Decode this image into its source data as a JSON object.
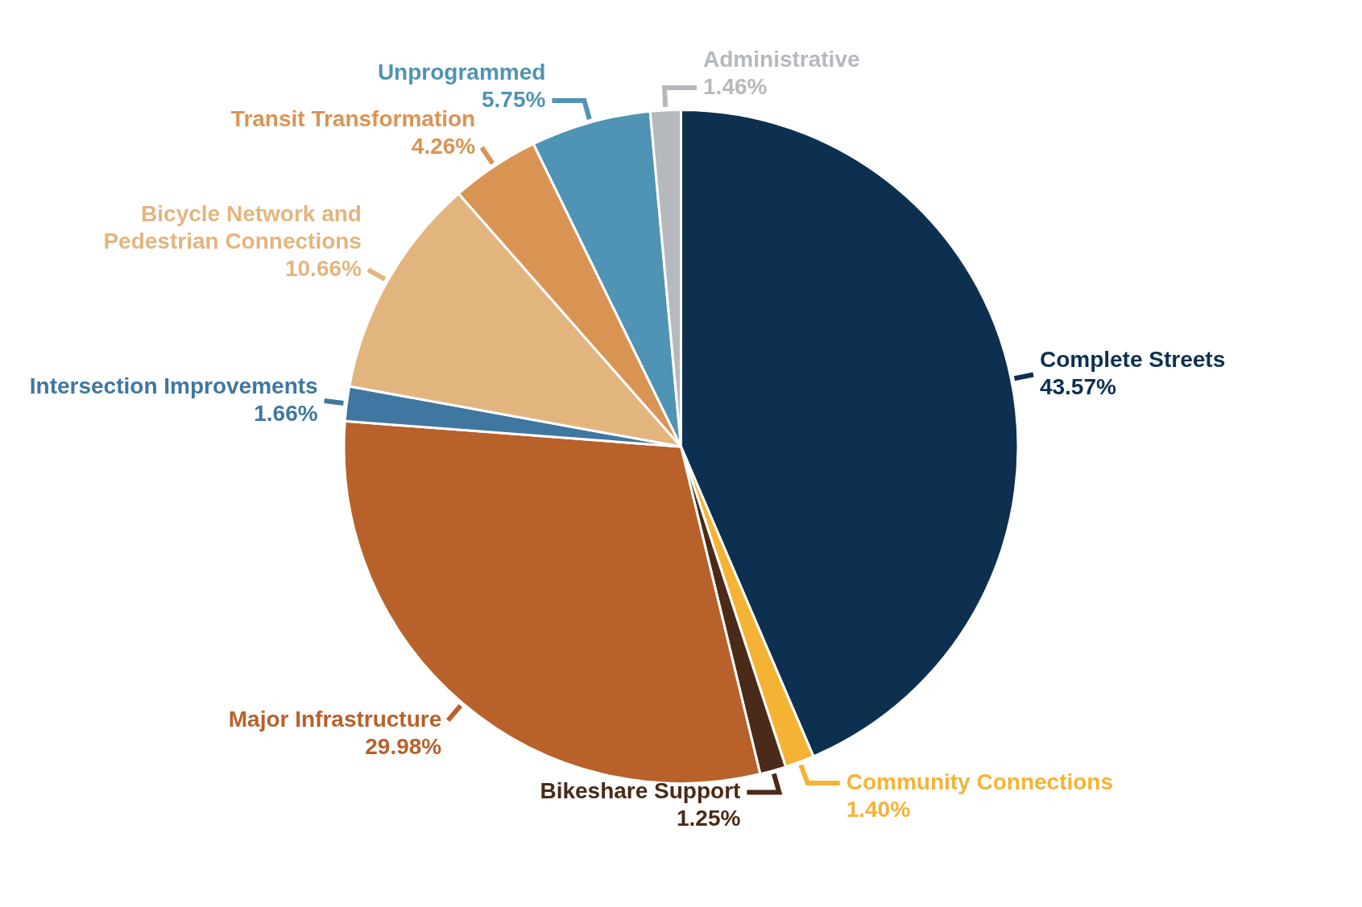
{
  "chart_data": {
    "type": "pie",
    "categories": [
      "Complete Streets",
      "Community Connections",
      "Bikeshare Support",
      "Major Infrastructure",
      "Intersection Improvements",
      "Bicycle Network and Pedestrian Connections",
      "Transit Transformation",
      "Unprogrammed",
      "Administrative"
    ],
    "values": [
      43.57,
      1.4,
      1.25,
      29.98,
      1.66,
      10.66,
      4.26,
      5.75,
      1.46
    ],
    "value_labels": [
      "43.57%",
      "1.40%",
      "1.25%",
      "29.98%",
      "1.66%",
      "10.66%",
      "4.26%",
      "5.75%",
      "1.46%"
    ],
    "colors": [
      "#0d3050",
      "#f5b335",
      "#4a2a18",
      "#b8612a",
      "#3f77a0",
      "#e3b57e",
      "#d99454",
      "#4f93b5",
      "#b5b9bd"
    ]
  }
}
